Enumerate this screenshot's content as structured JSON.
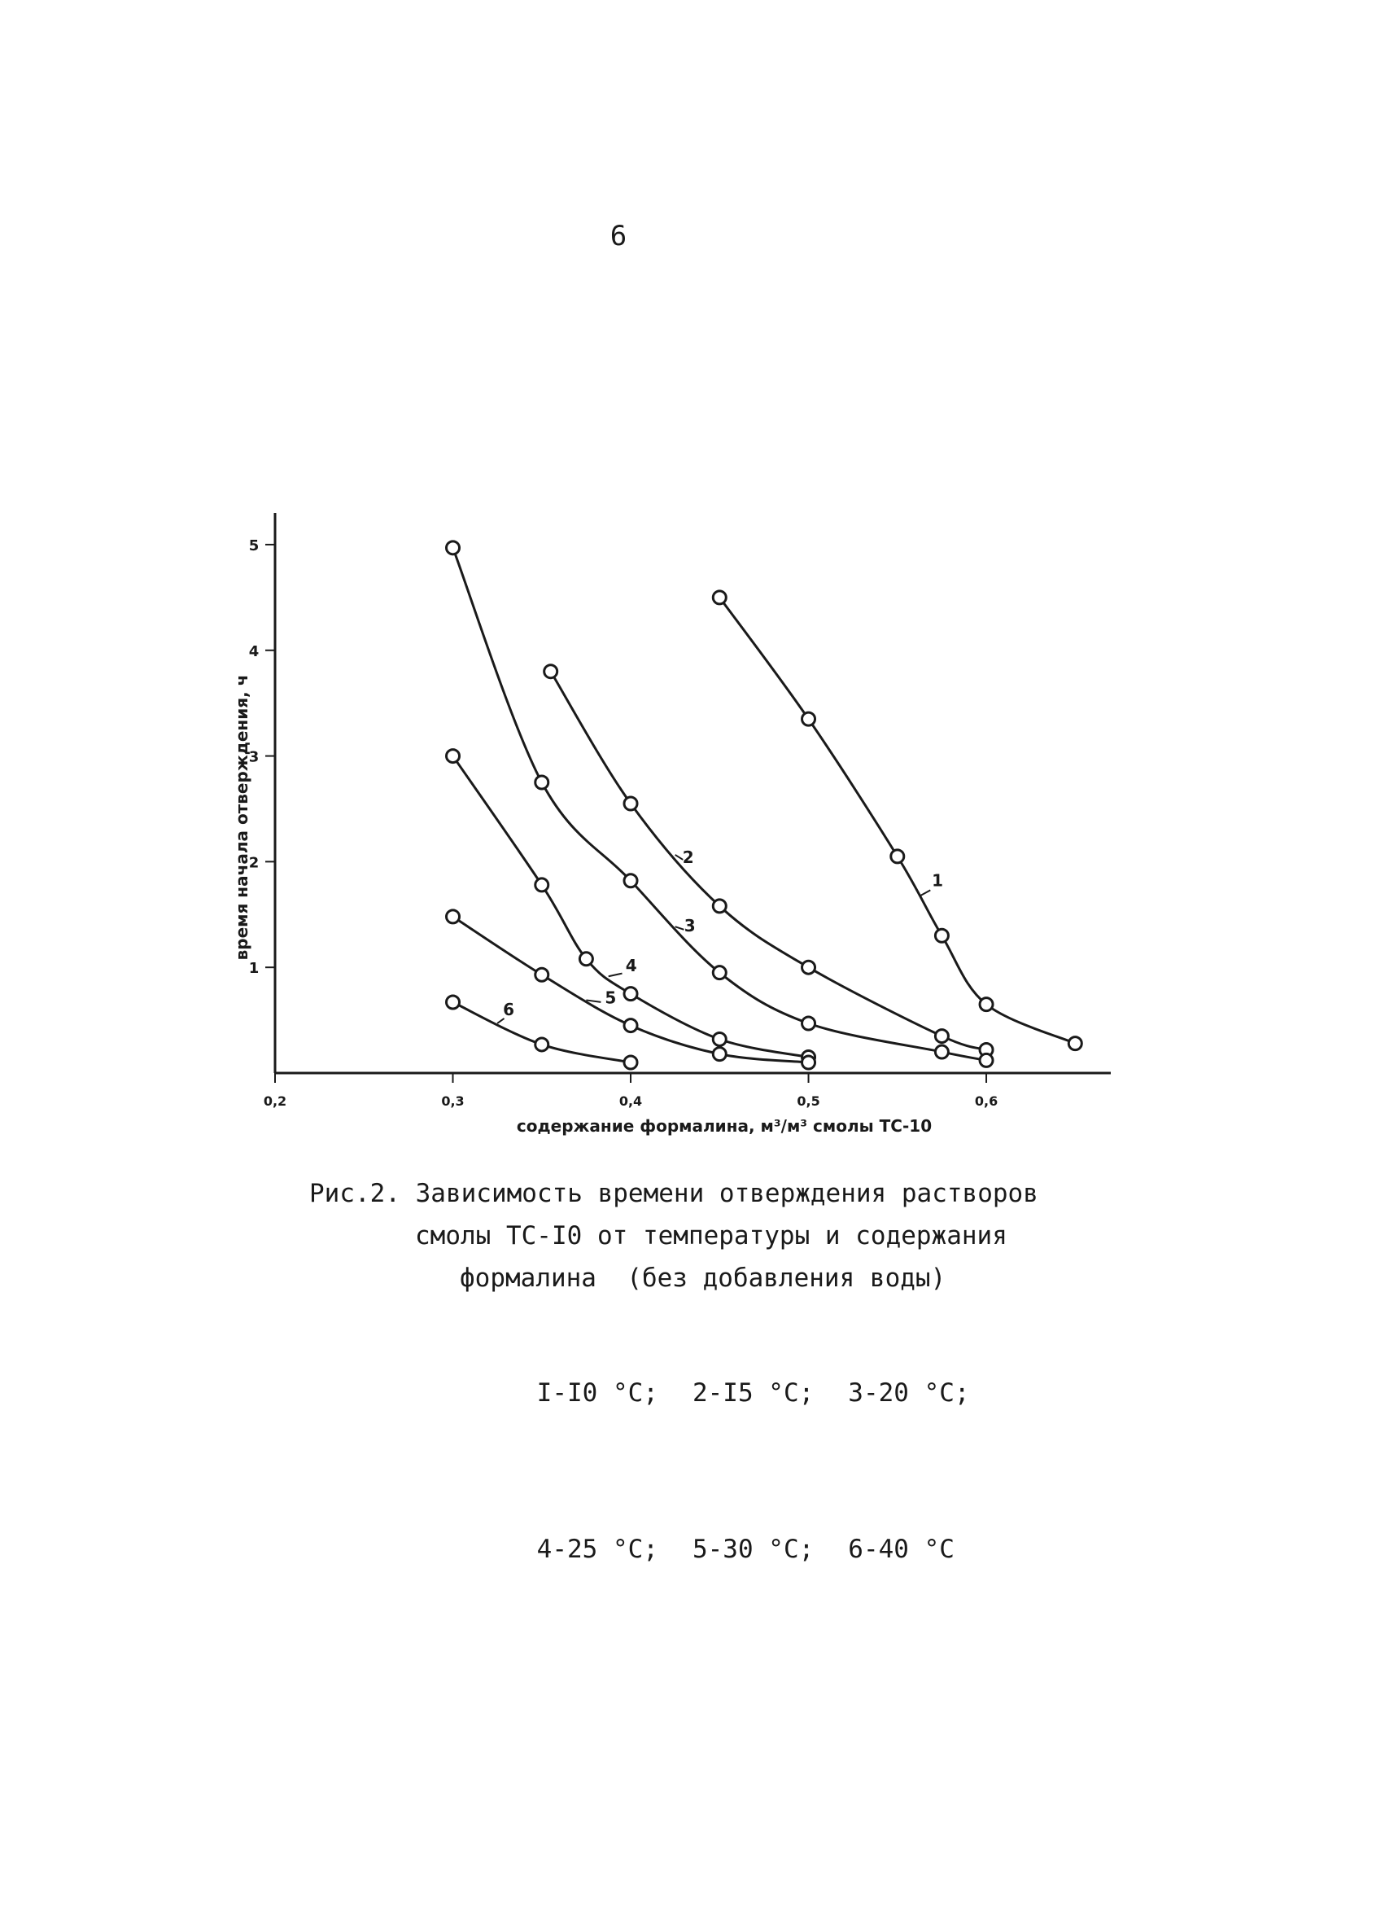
{
  "page": {
    "number": "6"
  },
  "chart_data": {
    "type": "line",
    "xlabel": "содержание формалина, м³/м³ смолы ТС-10",
    "ylabel": "время начала отверждения, ч",
    "xlim": [
      0.2,
      0.67
    ],
    "ylim": [
      0,
      5.3
    ],
    "x_ticks": [
      "0,2",
      "0,3",
      "0,4",
      "0,5",
      "0,6"
    ],
    "x_tick_values": [
      0.2,
      0.3,
      0.4,
      0.5,
      0.6
    ],
    "y_ticks": [
      "1",
      "2",
      "3",
      "4",
      "5"
    ],
    "y_tick_values": [
      1,
      2,
      3,
      4,
      5
    ],
    "grid": false,
    "series": [
      {
        "name": "1",
        "x": [
          0.45,
          0.5,
          0.55,
          0.575,
          0.6,
          0.65
        ],
        "y": [
          4.5,
          3.35,
          2.05,
          1.3,
          0.65,
          0.28
        ]
      },
      {
        "name": "2",
        "x": [
          0.355,
          0.4,
          0.45,
          0.5,
          0.575,
          0.6
        ],
        "y": [
          3.8,
          2.55,
          1.58,
          1.0,
          0.35,
          0.22
        ]
      },
      {
        "name": "3",
        "x": [
          0.3,
          0.35,
          0.4,
          0.45,
          0.5,
          0.575,
          0.6
        ],
        "y": [
          4.97,
          2.75,
          1.82,
          0.95,
          0.47,
          0.2,
          0.12
        ]
      },
      {
        "name": "4",
        "x": [
          0.3,
          0.35,
          0.375,
          0.4,
          0.45,
          0.5
        ],
        "y": [
          3.0,
          1.78,
          1.08,
          0.75,
          0.32,
          0.15
        ]
      },
      {
        "name": "5",
        "x": [
          0.3,
          0.35,
          0.4,
          0.45,
          0.5
        ],
        "y": [
          1.48,
          0.93,
          0.45,
          0.18,
          0.1
        ]
      },
      {
        "name": "6",
        "x": [
          0.3,
          0.35,
          0.4
        ],
        "y": [
          0.67,
          0.27,
          0.1
        ]
      }
    ]
  },
  "caption": {
    "line1": "Рис.2. Зависимость времени отверждения растворов",
    "line2": "смолы ТС-I0 от температуры и содержания",
    "line3": "формалина  (без добавления воды)"
  },
  "legend": {
    "row1": [
      "I-I0 °C;",
      "2-I5 °C;",
      "3-20 °C;"
    ],
    "row2": [
      "4-25 °C;",
      "5-30 °C;",
      "6-40 °C"
    ]
  }
}
